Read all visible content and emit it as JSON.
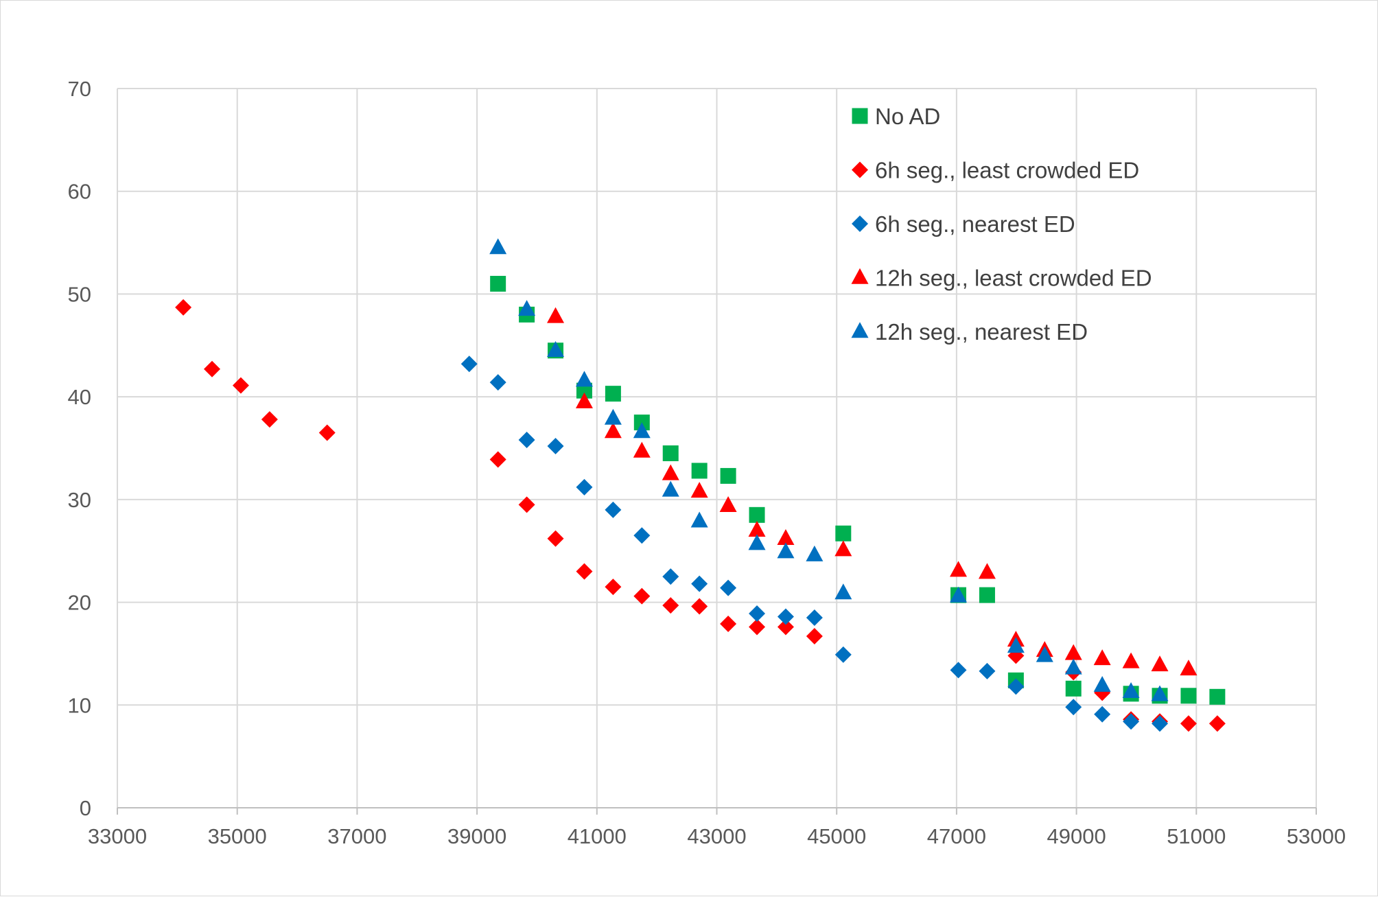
{
  "chart_data": {
    "type": "scatter",
    "title": "",
    "xlabel": "",
    "ylabel": "",
    "xlim": [
      33000,
      53000
    ],
    "ylim": [
      0,
      70
    ],
    "x_ticks": [
      33000,
      35000,
      37000,
      39000,
      41000,
      43000,
      45000,
      47000,
      49000,
      51000,
      53000
    ],
    "y_ticks": [
      0,
      10,
      20,
      30,
      40,
      50,
      60,
      70
    ],
    "x_tick_labels": [
      "33000",
      "35000",
      "37000",
      "39000",
      "41000",
      "43000",
      "45000",
      "47000",
      "49000",
      "51000",
      "53000"
    ],
    "y_tick_labels": [
      "0",
      "10",
      "20",
      "30",
      "40",
      "50",
      "60",
      "70"
    ],
    "grid": true,
    "legend_position": "top-right",
    "series": [
      {
        "name": "No AD",
        "marker": "square",
        "color": "#00b050",
        "points": [
          [
            39350,
            51
          ],
          [
            39830,
            48
          ],
          [
            40310,
            44.5
          ],
          [
            40790,
            40.6
          ],
          [
            41270,
            40.3
          ],
          [
            41750,
            37.5
          ],
          [
            42230,
            34.5
          ],
          [
            42710,
            32.8
          ],
          [
            43190,
            32.3
          ],
          [
            43670,
            28.5
          ],
          [
            45110,
            26.7
          ],
          [
            47030,
            20.7
          ],
          [
            47510,
            20.7
          ],
          [
            47990,
            12.4
          ],
          [
            48950,
            11.6
          ],
          [
            49910,
            11.1
          ],
          [
            50390,
            10.9
          ],
          [
            50870,
            10.9
          ],
          [
            51350,
            10.8
          ]
        ]
      },
      {
        "name": "6h seg., least crowded ED",
        "marker": "diamond",
        "color": "#ff0000",
        "points": [
          [
            34100,
            48.7
          ],
          [
            34580,
            42.7
          ],
          [
            35060,
            41.1
          ],
          [
            35540,
            37.8
          ],
          [
            36500,
            36.5
          ],
          [
            39350,
            33.9
          ],
          [
            39830,
            29.5
          ],
          [
            40310,
            26.2
          ],
          [
            40790,
            23
          ],
          [
            41270,
            21.5
          ],
          [
            41750,
            20.6
          ],
          [
            42230,
            19.7
          ],
          [
            42710,
            19.6
          ],
          [
            43190,
            17.9
          ],
          [
            43670,
            17.6
          ],
          [
            44150,
            17.6
          ],
          [
            44630,
            16.7
          ],
          [
            47990,
            14.8
          ],
          [
            48950,
            13.2
          ],
          [
            49430,
            11.2
          ],
          [
            49910,
            8.6
          ],
          [
            50390,
            8.4
          ],
          [
            50870,
            8.2
          ],
          [
            51350,
            8.2
          ]
        ]
      },
      {
        "name": "6h seg., nearest ED",
        "marker": "diamond",
        "color": "#0070c0",
        "points": [
          [
            38870,
            43.2
          ],
          [
            39350,
            41.4
          ],
          [
            39830,
            35.8
          ],
          [
            40310,
            35.2
          ],
          [
            40790,
            31.2
          ],
          [
            41270,
            29
          ],
          [
            41750,
            26.5
          ],
          [
            42230,
            22.5
          ],
          [
            42710,
            21.8
          ],
          [
            43190,
            21.4
          ],
          [
            43670,
            18.9
          ],
          [
            44150,
            18.6
          ],
          [
            44630,
            18.5
          ],
          [
            45110,
            14.9
          ],
          [
            47030,
            13.4
          ],
          [
            47510,
            13.3
          ],
          [
            47990,
            11.8
          ],
          [
            48950,
            9.8
          ],
          [
            49430,
            9.1
          ],
          [
            49910,
            8.4
          ],
          [
            50390,
            8.2
          ]
        ]
      },
      {
        "name": "12h seg., least crowded ED",
        "marker": "triangle",
        "color": "#ff0000",
        "points": [
          [
            40310,
            47.8
          ],
          [
            40790,
            39.5
          ],
          [
            41270,
            36.6
          ],
          [
            41750,
            34.7
          ],
          [
            42230,
            32.5
          ],
          [
            42710,
            30.8
          ],
          [
            43190,
            29.4
          ],
          [
            43670,
            27
          ],
          [
            44150,
            26.2
          ],
          [
            45110,
            25.1
          ],
          [
            47030,
            23.1
          ],
          [
            47510,
            22.9
          ],
          [
            47990,
            16.3
          ],
          [
            48470,
            15.3
          ],
          [
            48950,
            15
          ],
          [
            49430,
            14.5
          ],
          [
            49910,
            14.2
          ],
          [
            50390,
            13.9
          ],
          [
            50870,
            13.5
          ]
        ]
      },
      {
        "name": "12h seg., nearest ED",
        "marker": "triangle",
        "color": "#0070c0",
        "points": [
          [
            39350,
            54.5
          ],
          [
            39830,
            48.5
          ],
          [
            40310,
            44.5
          ],
          [
            40790,
            41.6
          ],
          [
            41270,
            37.9
          ],
          [
            41750,
            36.6
          ],
          [
            42230,
            30.9
          ],
          [
            42710,
            27.9
          ],
          [
            43670,
            25.7
          ],
          [
            44150,
            24.9
          ],
          [
            44630,
            24.6
          ],
          [
            45110,
            20.9
          ],
          [
            47030,
            20.6
          ],
          [
            47990,
            15.7
          ],
          [
            48470,
            14.8
          ],
          [
            48950,
            13.6
          ],
          [
            49430,
            11.9
          ],
          [
            49910,
            11.3
          ],
          [
            50390,
            11
          ]
        ]
      }
    ]
  }
}
